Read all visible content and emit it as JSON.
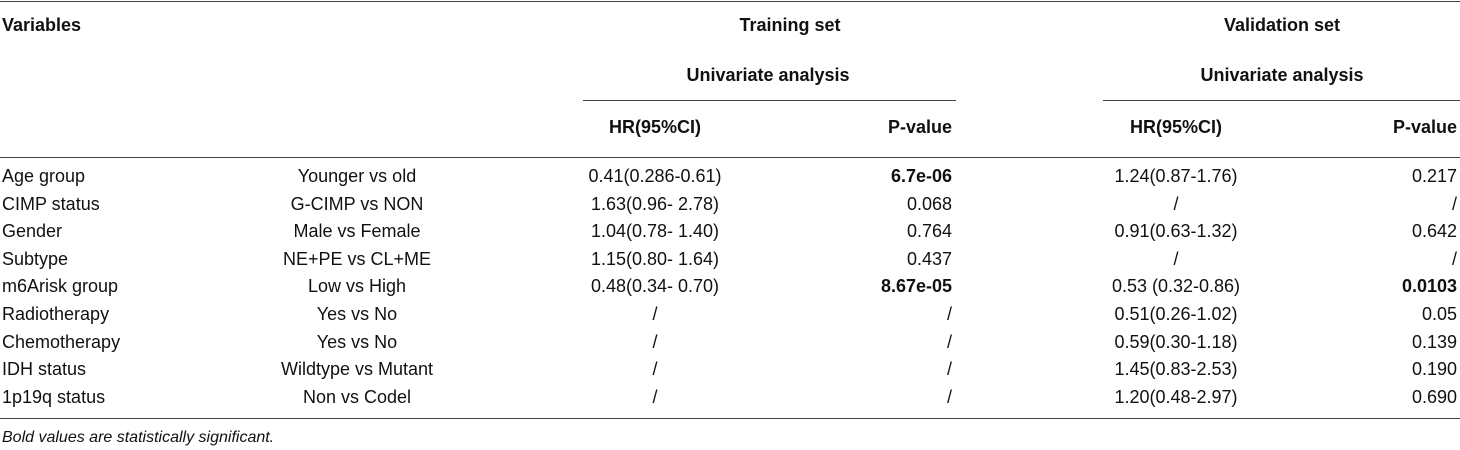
{
  "table": {
    "header": {
      "variables": "Variables",
      "groups": [
        "Training set",
        "Validation set"
      ],
      "analysis": [
        "Univariate analysis",
        "Univariate analysis"
      ],
      "columns": [
        "HR(95%CI)",
        "P-value",
        "HR(95%CI)",
        "P-value"
      ]
    },
    "rows": [
      [
        "Age group",
        "Younger vs old",
        "0.41(0.286-0.61)",
        {
          "text": "6.7e-06",
          "bold": true
        },
        "1.24(0.87-1.76)",
        "0.217"
      ],
      [
        "CIMP status",
        "G-CIMP vs NON",
        "1.63(0.96- 2.78)",
        "0.068",
        "/",
        "/"
      ],
      [
        "Gender",
        "Male vs Female",
        "1.04(0.78- 1.40)",
        "0.764",
        "0.91(0.63-1.32)",
        "0.642"
      ],
      [
        "Subtype",
        "NE+PE vs CL+ME",
        "1.15(0.80- 1.64)",
        "0.437",
        "/",
        "/"
      ],
      [
        "m6Arisk group",
        "Low vs High",
        "0.48(0.34- 0.70)",
        {
          "text": "8.67e-05",
          "bold": true
        },
        "0.53 (0.32-0.86)",
        {
          "text": "0.0103",
          "bold": true
        }
      ],
      [
        "Radiotherapy",
        "Yes vs No",
        "/",
        "/",
        "0.51(0.26-1.02)",
        "0.05"
      ],
      [
        "Chemotherapy",
        "Yes vs No",
        "/",
        "/",
        "0.59(0.30-1.18)",
        "0.139"
      ],
      [
        "IDH status",
        "Wildtype vs Mutant",
        "/",
        "/",
        "1.45(0.83-2.53)",
        "0.190"
      ],
      [
        "1p19q status",
        "Non vs Codel",
        "/",
        "/",
        "1.20(0.48-2.97)",
        "0.690"
      ]
    ],
    "footnote": "Bold values are statistically significant."
  }
}
